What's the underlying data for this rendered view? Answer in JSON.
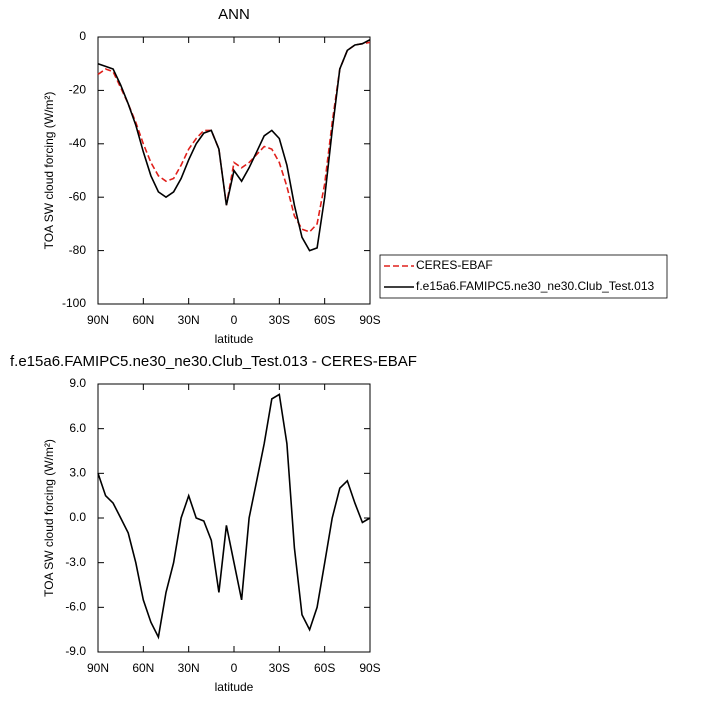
{
  "chart_data": [
    {
      "type": "line",
      "title": "ANN",
      "xlabel": "latitude",
      "ylabel": "TOA SW cloud forcing (W/m²)",
      "x": [
        90,
        85,
        80,
        75,
        70,
        65,
        60,
        55,
        50,
        45,
        40,
        35,
        30,
        25,
        20,
        15,
        10,
        5,
        0,
        -5,
        -10,
        -15,
        -20,
        -25,
        -30,
        -35,
        -40,
        -45,
        -50,
        -55,
        -60,
        -65,
        -70,
        -75,
        -80,
        -85,
        -90
      ],
      "xlim": [
        90,
        -90
      ],
      "xticks": [
        {
          "value": 90,
          "label": "90N"
        },
        {
          "value": 60,
          "label": "60N"
        },
        {
          "value": 30,
          "label": "30N"
        },
        0,
        {
          "value": -30,
          "label": "30S"
        },
        {
          "value": -60,
          "label": "60S"
        },
        {
          "value": -90,
          "label": "90S"
        }
      ],
      "ylim": [
        -100,
        0
      ],
      "yticks": [
        -100,
        -80,
        -60,
        -40,
        -20,
        0
      ],
      "legend": "outside right",
      "series": [
        {
          "name": "CERES-EBAF",
          "color": "#e0201b",
          "dashed": true,
          "values": [
            -14,
            -12,
            -13,
            -19,
            -25,
            -32,
            -40,
            -47,
            -52,
            -54,
            -53,
            -48,
            -42,
            -38,
            -35,
            -35,
            -42,
            -63,
            -47,
            -49,
            -47,
            -44,
            -41,
            -42,
            -47,
            -56,
            -67,
            -72,
            -73,
            -70,
            -55,
            -32,
            -12,
            -5,
            -3,
            -2.5,
            -2
          ]
        },
        {
          "name": "f.e15a6.FAMIPC5.ne30_ne30.Club_Test.013",
          "color": "#000000",
          "dashed": false,
          "values": [
            -10,
            -11,
            -12,
            -18,
            -25,
            -33,
            -43,
            -52,
            -58,
            -60,
            -58,
            -53,
            -46,
            -40,
            -36,
            -35,
            -42,
            -63,
            -50,
            -54,
            -49,
            -43,
            -37,
            -35,
            -38,
            -48,
            -63,
            -75,
            -80,
            -79,
            -60,
            -35,
            -12,
            -5,
            -3,
            -2.5,
            -1
          ]
        }
      ]
    },
    {
      "type": "line",
      "title": "f.e15a6.FAMIPC5.ne30_ne30.Club_Test.013 - CERES-EBAF",
      "xlabel": "latitude",
      "ylabel": "TOA SW cloud forcing (W/m²)",
      "x": [
        90,
        85,
        80,
        75,
        70,
        65,
        60,
        55,
        50,
        45,
        40,
        35,
        30,
        25,
        20,
        15,
        10,
        5,
        0,
        -5,
        -10,
        -15,
        -20,
        -25,
        -30,
        -35,
        -40,
        -45,
        -50,
        -55,
        -60,
        -65,
        -70,
        -75,
        -80,
        -85,
        -90
      ],
      "xlim": [
        90,
        -90
      ],
      "xticks": [
        {
          "value": 90,
          "label": "90N"
        },
        {
          "value": 60,
          "label": "60N"
        },
        {
          "value": 30,
          "label": "30N"
        },
        0,
        {
          "value": -30,
          "label": "30S"
        },
        {
          "value": -60,
          "label": "60S"
        },
        {
          "value": -90,
          "label": "90S"
        }
      ],
      "ylim": [
        -9,
        9
      ],
      "yticks": [
        {
          "value": -9,
          "label": "-9.0"
        },
        {
          "value": -6,
          "label": "-6.0"
        },
        {
          "value": -3,
          "label": "-3.0"
        },
        {
          "value": 0,
          "label": "0.0"
        },
        {
          "value": 3,
          "label": "3.0"
        },
        {
          "value": 6,
          "label": "6.0"
        },
        {
          "value": 9,
          "label": "9.0"
        }
      ],
      "series": [
        {
          "color": "#000000",
          "dashed": false,
          "values": [
            3,
            1.5,
            1,
            0,
            -1,
            -3,
            -5.5,
            -7,
            -8,
            -5,
            -3,
            0,
            1.5,
            0,
            -0.2,
            -1.5,
            -5,
            -0.5,
            -3,
            -5.5,
            0,
            2.5,
            5,
            8,
            8.3,
            5,
            -2,
            -6.5,
            -7.5,
            -6,
            -3,
            0,
            2,
            2.5,
            1,
            -0.3,
            0
          ]
        }
      ]
    }
  ]
}
